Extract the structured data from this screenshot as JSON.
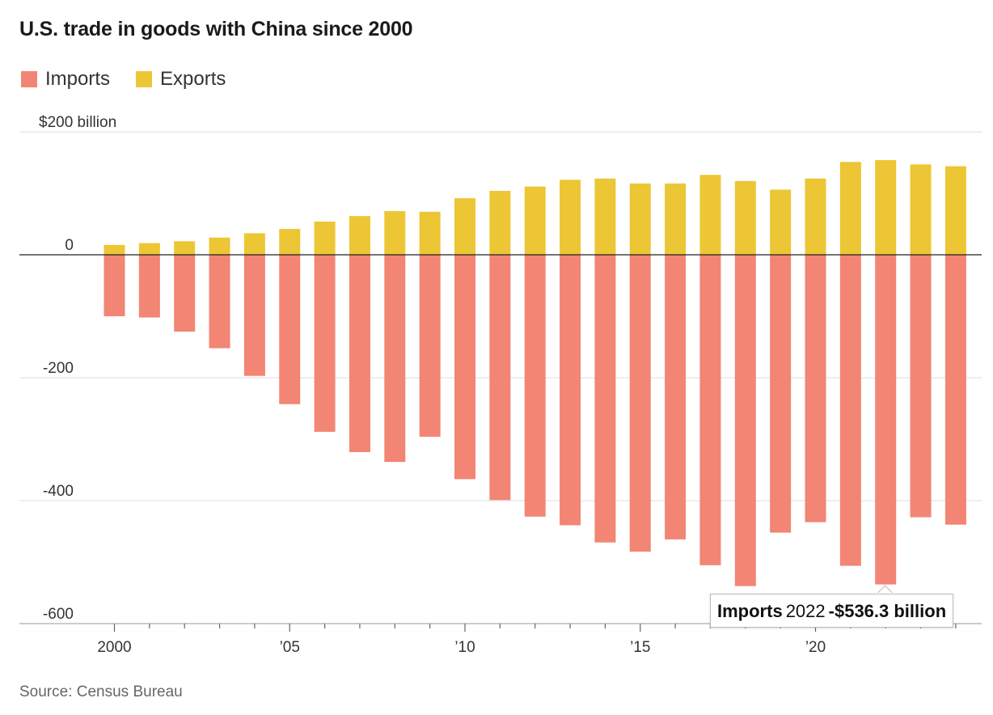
{
  "title": "U.S. trade in goods with China since 2000",
  "legend": [
    {
      "label": "Imports",
      "color": "#f28574"
    },
    {
      "label": "Exports",
      "color": "#ecc634"
    }
  ],
  "source": "Source: Census Bureau",
  "tooltip": {
    "series": "Imports",
    "year": "2022",
    "value": "-$536.3 billion"
  },
  "chart_data": {
    "type": "bar",
    "stacked_diverging": true,
    "x": [
      2000,
      2001,
      2002,
      2003,
      2004,
      2005,
      2006,
      2007,
      2008,
      2009,
      2010,
      2011,
      2012,
      2013,
      2014,
      2015,
      2016,
      2017,
      2018,
      2019,
      2020,
      2021,
      2022,
      2023,
      2024
    ],
    "series": [
      {
        "name": "Imports",
        "color": "#f28574",
        "values": [
          -100,
          -102,
          -125,
          -152,
          -197,
          -243,
          -288,
          -321,
          -337,
          -296,
          -365,
          -399,
          -426,
          -440,
          -468,
          -483,
          -463,
          -505,
          -539,
          -452,
          -435,
          -506,
          -536.3,
          -427,
          -439
        ]
      },
      {
        "name": "Exports",
        "color": "#ecc634",
        "values": [
          16,
          19,
          22,
          28,
          35,
          42,
          54,
          63,
          71,
          70,
          92,
          104,
          111,
          122,
          124,
          116,
          116,
          130,
          120,
          106,
          124,
          151,
          154,
          147,
          144
        ]
      }
    ],
    "ylim": [
      -600,
      200
    ],
    "y_ticks": [
      200,
      0,
      -200,
      -400,
      -600
    ],
    "y_tick_labels": [
      "$200 billion",
      "0",
      "-200",
      "-400",
      "-600"
    ],
    "x_tick_labels": [
      {
        "year": 2000,
        "label": "2000"
      },
      {
        "year": 2005,
        "label": "’05"
      },
      {
        "year": 2010,
        "label": "’10"
      },
      {
        "year": 2015,
        "label": "’15"
      },
      {
        "year": 2020,
        "label": "’20"
      }
    ],
    "grid": true,
    "legend_position": "top-left"
  }
}
